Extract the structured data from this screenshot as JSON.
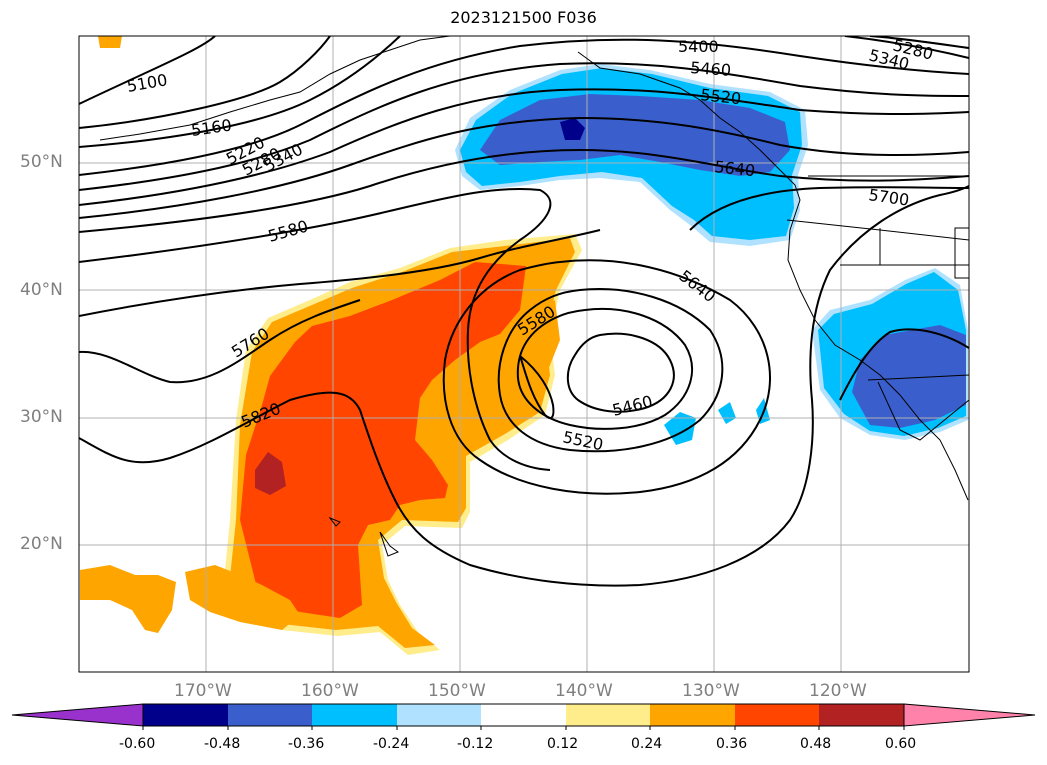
{
  "title": "2023121500 F036",
  "lat_labels": [
    {
      "text": "50°N",
      "lat": 50
    },
    {
      "text": "40°N",
      "lat": 40
    },
    {
      "text": "30°N",
      "lat": 30
    },
    {
      "text": "20°N",
      "lat": 20
    }
  ],
  "lon_labels": [
    {
      "text": "170°W",
      "lon": -170
    },
    {
      "text": "160°W",
      "lon": -160
    },
    {
      "text": "150°W",
      "lon": -150
    },
    {
      "text": "140°W",
      "lon": -140
    },
    {
      "text": "130°W",
      "lon": -130
    },
    {
      "text": "120°W",
      "lon": -120
    }
  ],
  "colorbar": {
    "ticks": [
      "-0.60",
      "-0.48",
      "-0.36",
      "-0.24",
      "-0.12",
      "0.12",
      "0.24",
      "0.36",
      "0.48",
      "0.60"
    ],
    "colors": [
      "#9932cc",
      "#00008b",
      "#3a5fcd",
      "#00bfff",
      "#b0e2ff",
      "#ffffff",
      "#ffec8b",
      "#ffa500",
      "#ff4500",
      "#b22222",
      "#ff82ab"
    ]
  },
  "contour_labels": [
    {
      "text": "5100"
    },
    {
      "text": "5160"
    },
    {
      "text": "5220"
    },
    {
      "text": "5280"
    },
    {
      "text": "5340"
    },
    {
      "text": "5580"
    },
    {
      "text": "5760"
    },
    {
      "text": "5820"
    },
    {
      "text": "5580"
    },
    {
      "text": "5640"
    },
    {
      "text": "5460"
    },
    {
      "text": "5520"
    },
    {
      "text": "5400"
    },
    {
      "text": "5460"
    },
    {
      "text": "5520"
    },
    {
      "text": "5640"
    },
    {
      "text": "5700"
    },
    {
      "text": "5280"
    },
    {
      "text": "5340"
    }
  ]
}
